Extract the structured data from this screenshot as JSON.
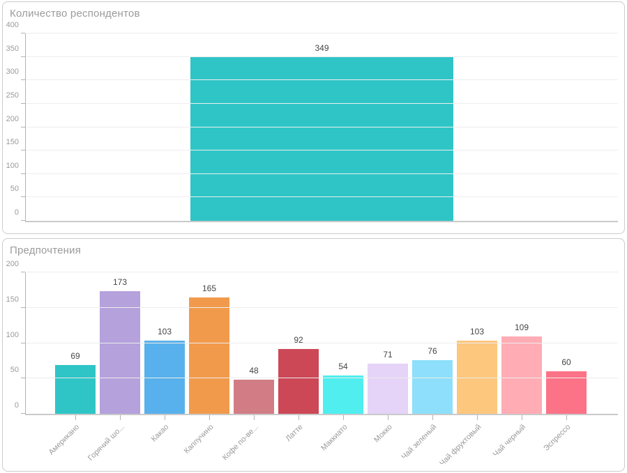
{
  "chart_data": [
    {
      "type": "bar",
      "title": "Количество респондентов",
      "categories": [
        ""
      ],
      "values": [
        349
      ],
      "data_labels": [
        "349"
      ],
      "bar_colors": [
        "#2fc5c7"
      ],
      "ylim": [
        0,
        400
      ],
      "yticks": [
        0,
        50,
        100,
        150,
        200,
        250,
        300,
        350,
        400
      ],
      "grid": true,
      "legend": "none",
      "x_labels_visible": false
    },
    {
      "type": "bar",
      "title": "Предпочтения",
      "categories": [
        "Американо",
        "Горячий шо...",
        "Какао",
        "Каппучино",
        "Кофе по-ве...",
        "Латте",
        "Маккиато",
        "Мокко",
        "Чай зеленый",
        "Чай фруктовый",
        "Чай черный",
        "Эспрессо"
      ],
      "values": [
        69,
        173,
        103,
        165,
        48,
        92,
        54,
        71,
        76,
        103,
        109,
        60
      ],
      "data_labels": [
        "69",
        "173",
        "103",
        "165",
        "48",
        "92",
        "54",
        "71",
        "76",
        "103",
        "109",
        "60"
      ],
      "bar_colors": [
        "#2fc5c7",
        "#b5a1dc",
        "#58b1ec",
        "#f29a4c",
        "#d27d85",
        "#cc4857",
        "#50eeee",
        "#e6d3f8",
        "#8edffb",
        "#fdc77d",
        "#ffacb5",
        "#fc7287"
      ],
      "ylim": [
        0,
        200
      ],
      "yticks": [
        0,
        50,
        100,
        150,
        200
      ],
      "grid": true,
      "legend": "none",
      "x_labels_visible": true,
      "x_label_rotation": -45
    }
  ],
  "ui_colors": {
    "panel_border": "#cccccc",
    "title_text": "#9b9b9b",
    "axis_line": "#b2b2b2",
    "gridline": "#ededed",
    "tick_label": "#9a9a9a",
    "value_label": "#454545",
    "background": "#ffffff"
  }
}
